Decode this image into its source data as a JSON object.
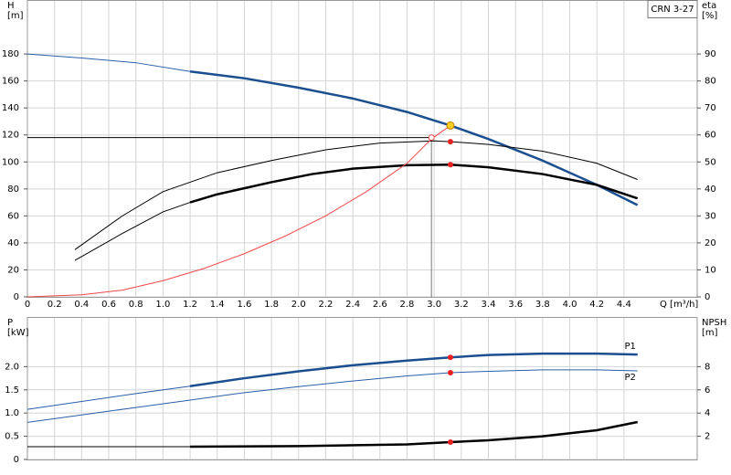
{
  "chart_data": [
    {
      "type": "line",
      "title": "CRN 3-27",
      "ylabel": [
        "H",
        "[m]"
      ],
      "y2label": [
        "eta",
        "[%]"
      ],
      "xlabel": "Q [m³/h]",
      "xlim": [
        0,
        4.94
      ],
      "ylim": [
        0,
        220
      ],
      "y2lim": [
        0,
        110
      ],
      "xticks": [
        0,
        0.2,
        0.4,
        0.6,
        0.8,
        {
          "value": 1,
          "label": "1.0"
        },
        1.2,
        1.4,
        1.6,
        1.8,
        {
          "value": 2,
          "label": "2.0"
        },
        2.2,
        2.4,
        2.6,
        2.8,
        {
          "value": 3,
          "label": "3.0"
        },
        3.2,
        3.4,
        3.6,
        3.8,
        {
          "value": 4,
          "label": "4.0"
        },
        4.2,
        4.4
      ],
      "yticks": [
        0,
        20,
        40,
        60,
        80,
        100,
        120,
        140,
        160,
        180
      ],
      "y2ticks": [
        0,
        10,
        20,
        30,
        40,
        50,
        60,
        70,
        80,
        90
      ],
      "grid": true,
      "series": [
        {
          "color": "#2a5ea8",
          "width": 1,
          "x": [
            0,
            0.4,
            0.8,
            1.2
          ],
          "values": [
            180,
            177,
            173.5,
            167
          ]
        },
        {
          "color": "#1b4f8f",
          "width": 2.5,
          "x": [
            1.2,
            1.6,
            2.0,
            2.4,
            2.8,
            3.12,
            3.4,
            3.8,
            4.2,
            4.5
          ],
          "values": [
            167,
            162,
            155,
            147,
            137,
            127,
            117,
            101,
            83,
            68
          ]
        },
        {
          "color": "#000000",
          "width": 1,
          "axis": "y2",
          "x": [
            0.35,
            0.7,
            1.0,
            1.4,
            1.8,
            2.2,
            2.6,
            3.0,
            3.12,
            3.4,
            3.8,
            4.2,
            4.5
          ],
          "values": [
            17.5,
            30,
            39,
            46,
            50.5,
            54.5,
            57,
            57.8,
            57.5,
            56.5,
            54,
            49.5,
            43.5
          ]
        },
        {
          "color": "#000000",
          "width": 1,
          "axis": "y2",
          "x": [
            0.35,
            0.7,
            1.0,
            1.2
          ],
          "values": [
            13.5,
            23.5,
            31.5,
            35
          ]
        },
        {
          "color": "#000000",
          "width": 2.5,
          "axis": "y2",
          "x": [
            1.2,
            1.4,
            1.8,
            2.1,
            2.4,
            2.8,
            3.12,
            3.4,
            3.8,
            4.2,
            4.5
          ],
          "values": [
            35,
            38,
            42.5,
            45.5,
            47.5,
            48.8,
            49,
            48,
            45.5,
            41.5,
            36.5
          ]
        },
        {
          "color": "#f04848",
          "width": 1,
          "x": [
            0,
            0.4,
            0.7,
            1.0,
            1.3,
            1.6,
            1.9,
            2.2,
            2.5,
            2.8,
            2.98,
            3.12
          ],
          "values": [
            0,
            1.5,
            5,
            12,
            21,
            32,
            45,
            60,
            78,
            99,
            117,
            127
          ]
        }
      ],
      "duty_point": {
        "x": 2.98,
        "y": 118
      },
      "markers": [
        {
          "x": 3.12,
          "y": 127,
          "color": "#f5d020"
        },
        {
          "x": 3.12,
          "y": 57.5,
          "axis": "y2",
          "color": "#e82020"
        },
        {
          "x": 3.12,
          "y": 49,
          "axis": "y2",
          "color": "#e82020"
        }
      ]
    },
    {
      "type": "line",
      "ylabel": [
        "P",
        "[kW]"
      ],
      "y2label": [
        "NPSH",
        "[m]"
      ],
      "xlim": [
        0,
        4.94
      ],
      "ylim": [
        0,
        3.07
      ],
      "y2lim": [
        0,
        12.28
      ],
      "xticks": [
        0,
        0.2,
        0.4,
        0.6,
        0.8,
        1,
        1.2,
        1.4,
        1.6,
        1.8,
        2,
        2.2,
        2.4,
        2.6,
        2.8,
        3,
        3.2,
        3.4,
        3.6,
        3.8,
        4,
        4.2,
        4.4
      ],
      "yticks": [
        0,
        0.5,
        {
          "value": 1,
          "label": "1.0"
        },
        1.5,
        {
          "value": 2,
          "label": "2.0"
        }
      ],
      "y2ticks": [
        2,
        4,
        6,
        8
      ],
      "grid": true,
      "series": [
        {
          "color": "#2a5ea8",
          "width": 1,
          "x": [
            0,
            0.4,
            0.8,
            1.2
          ],
          "values": [
            1.08,
            1.25,
            1.42,
            1.58
          ]
        },
        {
          "name": "P1",
          "label_pos": "above",
          "color": "#1b4f8f",
          "width": 2.5,
          "x": [
            1.2,
            1.6,
            2.0,
            2.4,
            2.8,
            3.12,
            3.4,
            3.8,
            4.2,
            4.5
          ],
          "values": [
            1.58,
            1.75,
            1.9,
            2.03,
            2.13,
            2.2,
            2.25,
            2.28,
            2.28,
            2.26
          ]
        },
        {
          "name": "P2",
          "label_pos": "below",
          "color": "#2a5ea8",
          "width": 1,
          "x": [
            0,
            0.4,
            0.8,
            1.2,
            1.6,
            2.0,
            2.4,
            2.8,
            3.12,
            3.4,
            3.8,
            4.2,
            4.5
          ],
          "values": [
            0.8,
            0.96,
            1.12,
            1.28,
            1.44,
            1.57,
            1.69,
            1.8,
            1.87,
            1.9,
            1.93,
            1.93,
            1.91
          ]
        },
        {
          "color": "#000000",
          "width": 1,
          "axis": "y2",
          "x": [
            0,
            1.2
          ],
          "values": [
            1.1,
            1.1
          ]
        },
        {
          "color": "#000000",
          "width": 2.5,
          "axis": "y2",
          "x": [
            1.2,
            2.0,
            2.8,
            3.12,
            3.4,
            3.8,
            4.2,
            4.5
          ],
          "values": [
            1.1,
            1.15,
            1.3,
            1.5,
            1.65,
            2.0,
            2.52,
            3.23
          ]
        }
      ],
      "markers": [
        {
          "x": 3.12,
          "y": 2.2,
          "color": "#e82020"
        },
        {
          "x": 3.12,
          "y": 1.87,
          "color": "#e82020"
        },
        {
          "x": 3.12,
          "y": 1.5,
          "axis": "y2",
          "color": "#e82020"
        }
      ]
    }
  ]
}
